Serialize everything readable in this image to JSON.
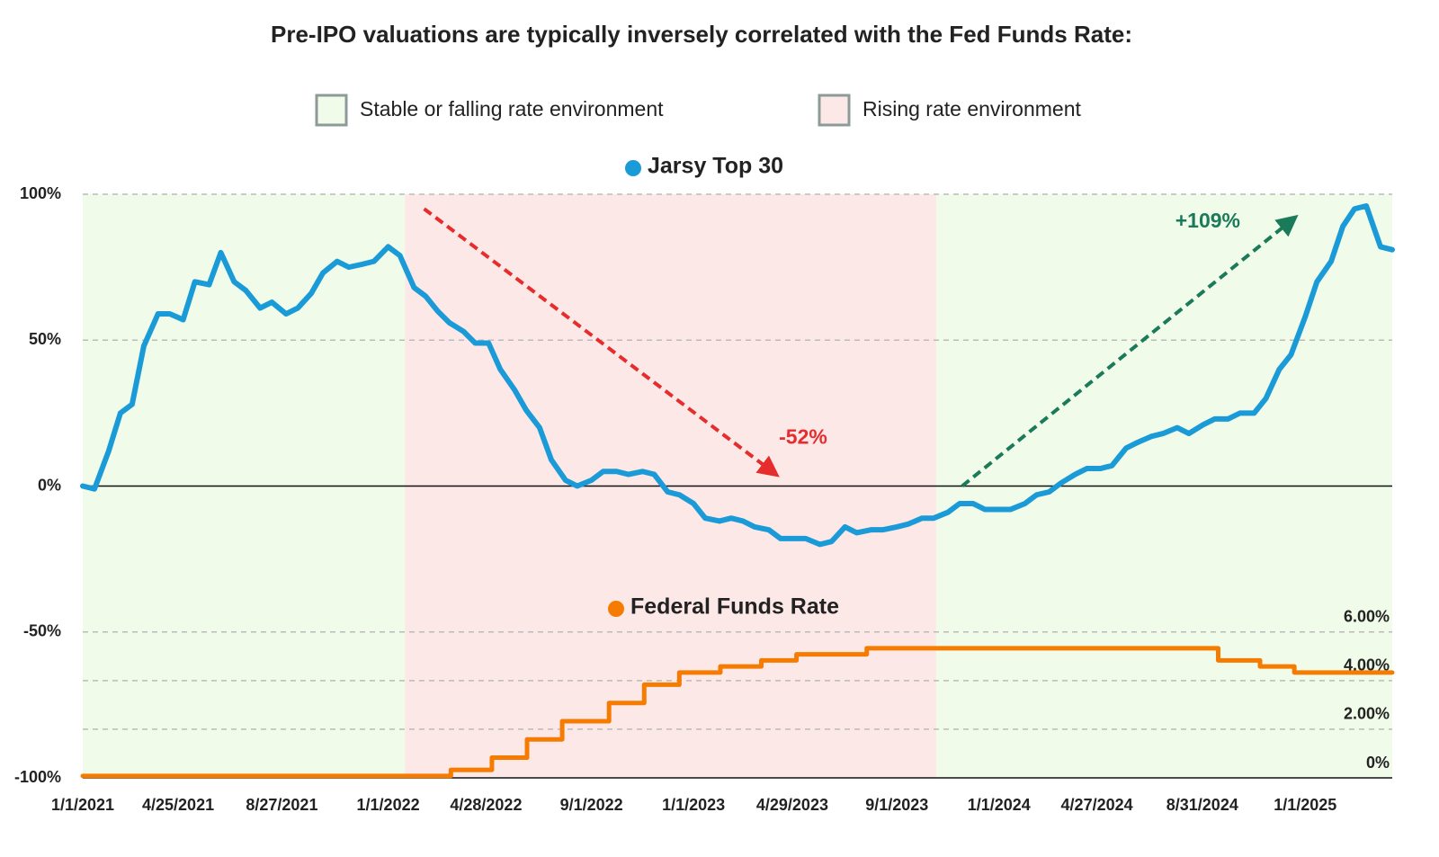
{
  "chart_data": {
    "type": "line",
    "title": "Pre-IPO valuations are typically inversely correlated with the Fed Funds Rate:",
    "legend_regions": [
      {
        "label": "Stable or falling rate environment",
        "color": "#f1fbe9"
      },
      {
        "label": "Rising rate environment",
        "color": "#fde8e8"
      }
    ],
    "regions": [
      {
        "start": "2021-01-01",
        "end": "2022-01-21",
        "legend": 0
      },
      {
        "start": "2022-01-21",
        "end": "2023-10-18",
        "legend": 1
      },
      {
        "start": "2023-10-18",
        "end": "2025-04-15",
        "legend": 0
      }
    ],
    "xlim": [
      "2021-01-01",
      "2025-04-15"
    ],
    "xticks": [
      {
        "value": "2021-01-01",
        "label": "1/1/2021"
      },
      {
        "value": "2021-04-25",
        "label": "4/25/2021"
      },
      {
        "value": "2021-08-27",
        "label": "8/27/2021"
      },
      {
        "value": "2022-01-01",
        "label": "1/1/2022"
      },
      {
        "value": "2022-04-28",
        "label": "4/28/2022"
      },
      {
        "value": "2022-09-01",
        "label": "9/1/2022"
      },
      {
        "value": "2023-01-01",
        "label": "1/1/2023"
      },
      {
        "value": "2023-04-29",
        "label": "4/29/2023"
      },
      {
        "value": "2023-09-01",
        "label": "9/1/2023"
      },
      {
        "value": "2024-01-01",
        "label": "1/1/2024"
      },
      {
        "value": "2024-04-27",
        "label": "4/27/2024"
      },
      {
        "value": "2024-08-31",
        "label": "8/31/2024"
      },
      {
        "value": "2025-01-01",
        "label": "1/1/2025"
      }
    ],
    "ylim": [
      -100,
      100
    ],
    "yticks": [
      {
        "value": -100,
        "label": "-100%"
      },
      {
        "value": -50,
        "label": "-50%"
      },
      {
        "value": 0,
        "label": "0%"
      },
      {
        "value": 50,
        "label": "50%"
      },
      {
        "value": 100,
        "label": "100%"
      }
    ],
    "y2lim": [
      0,
      24
    ],
    "y2ticks": [
      {
        "value": 0,
        "label": "0%"
      },
      {
        "value": 2,
        "label": "2.00%"
      },
      {
        "value": 4,
        "label": "4.00%"
      },
      {
        "value": 6,
        "label": "6.00%"
      }
    ],
    "grid": true,
    "series": [
      {
        "name": "Jarsy Top 30",
        "color": "#1a9bd7",
        "axis": "y",
        "x": [
          "2021-01-01",
          "2021-01-15",
          "2021-02-01",
          "2021-02-15",
          "2021-03-01",
          "2021-03-15",
          "2021-04-01",
          "2021-04-15",
          "2021-05-01",
          "2021-05-15",
          "2021-06-01",
          "2021-06-15",
          "2021-07-01",
          "2021-07-15",
          "2021-08-01",
          "2021-08-15",
          "2021-09-01",
          "2021-09-15",
          "2021-10-01",
          "2021-10-15",
          "2021-11-01",
          "2021-11-15",
          "2021-12-01",
          "2021-12-15",
          "2022-01-01",
          "2022-01-15",
          "2022-02-01",
          "2022-02-15",
          "2022-03-01",
          "2022-03-15",
          "2022-04-01",
          "2022-04-15",
          "2022-05-01",
          "2022-05-15",
          "2022-06-01",
          "2022-06-15",
          "2022-07-01",
          "2022-07-15",
          "2022-08-01",
          "2022-08-15",
          "2022-09-01",
          "2022-09-15",
          "2022-10-01",
          "2022-10-15",
          "2022-11-01",
          "2022-11-15",
          "2022-12-01",
          "2022-12-15",
          "2023-01-01",
          "2023-01-15",
          "2023-02-01",
          "2023-02-15",
          "2023-03-01",
          "2023-03-15",
          "2023-04-01",
          "2023-04-15",
          "2023-05-01",
          "2023-05-15",
          "2023-06-01",
          "2023-06-15",
          "2023-07-01",
          "2023-07-15",
          "2023-08-01",
          "2023-08-15",
          "2023-09-01",
          "2023-09-15",
          "2023-10-01",
          "2023-10-15",
          "2023-11-01",
          "2023-11-15",
          "2023-12-01",
          "2023-12-15",
          "2024-01-01",
          "2024-01-15",
          "2024-02-01",
          "2024-02-15",
          "2024-03-01",
          "2024-03-15",
          "2024-04-01",
          "2024-04-15",
          "2024-05-01",
          "2024-05-15",
          "2024-06-01",
          "2024-06-15",
          "2024-07-01",
          "2024-07-15",
          "2024-08-01",
          "2024-08-15",
          "2024-09-01",
          "2024-09-15",
          "2024-10-01",
          "2024-10-15",
          "2024-11-01",
          "2024-11-15",
          "2024-12-01",
          "2024-12-15",
          "2025-01-01",
          "2025-01-15",
          "2025-02-01",
          "2025-02-15",
          "2025-03-01",
          "2025-03-15",
          "2025-04-01",
          "2025-04-15"
        ],
        "values": [
          0,
          -1,
          12,
          25,
          28,
          48,
          59,
          59,
          57,
          70,
          69,
          80,
          70,
          67,
          61,
          63,
          59,
          61,
          66,
          73,
          77,
          75,
          76,
          77,
          82,
          79,
          68,
          65,
          60,
          56,
          53,
          49,
          49,
          40,
          33,
          26,
          20,
          9,
          2,
          0,
          2,
          5,
          5,
          4,
          5,
          4,
          -2,
          -3,
          -6,
          -11,
          -12,
          -11,
          -12,
          -14,
          -15,
          -18,
          -18,
          -18,
          -20,
          -19,
          -14,
          -16,
          -15,
          -15,
          -14,
          -13,
          -11,
          -11,
          -9,
          -6,
          -6,
          -8,
          -8,
          -8,
          -6,
          -3,
          -2,
          1,
          4,
          6,
          6,
          7,
          13,
          15,
          17,
          18,
          20,
          18,
          21,
          23,
          23,
          25,
          25,
          30,
          40,
          45,
          58,
          70,
          77,
          89,
          95,
          96,
          82,
          81
        ]
      },
      {
        "name": "Federal Funds Rate",
        "color": "#f57c00",
        "axis": "y2",
        "step": true,
        "x": [
          "2021-01-01",
          "2022-03-17",
          "2022-05-05",
          "2022-06-16",
          "2022-07-28",
          "2022-09-22",
          "2022-11-03",
          "2022-12-15",
          "2023-02-02",
          "2023-03-23",
          "2023-05-04",
          "2023-07-27",
          "2024-09-19",
          "2024-11-08",
          "2024-12-19"
        ],
        "values": [
          0.08,
          0.33,
          0.83,
          1.58,
          2.33,
          3.08,
          3.83,
          4.33,
          4.58,
          4.83,
          5.08,
          5.33,
          4.83,
          4.58,
          4.33
        ]
      }
    ],
    "annotations": [
      {
        "text": "-52%",
        "color": "#e52d2d",
        "from": [
          "2022-02-13",
          95
        ],
        "to": [
          "2023-04-28",
          0
        ]
      },
      {
        "text": "+109%",
        "color": "#1b7a5a",
        "from": [
          "2023-11-18",
          0
        ],
        "to": [
          "2025-01-06",
          96
        ]
      }
    ]
  }
}
